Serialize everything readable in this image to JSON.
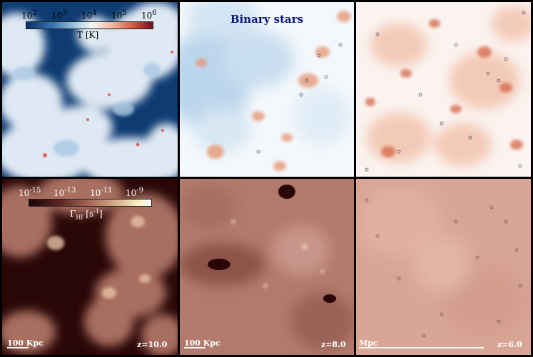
{
  "title": "Binary stars",
  "temperature_colorbar": {
    "ticks": [
      "10",
      "10",
      "10",
      "10",
      "10"
    ],
    "exponents": [
      "2",
      "3",
      "4",
      "5",
      "6"
    ],
    "label_symbol": "T",
    "label_unit": "[K]"
  },
  "photoionization_colorbar": {
    "ticks": [
      "10",
      "10",
      "10",
      "10"
    ],
    "exponents": [
      "-15",
      "-13",
      "-11",
      "-9"
    ],
    "label_symbol": "Γ",
    "label_sub": "HI",
    "label_unit": "[s",
    "label_unit_exp": "-1",
    "label_unit_close": "]"
  },
  "redshifts": [
    "z=10.0",
    "z=8.0",
    "z=6.0"
  ],
  "scalebars": [
    "100 Kpc",
    "100 Kpc",
    "Mpc"
  ],
  "colors": {
    "temperature_low": "#0a2f66",
    "temperature_mid": "#f7f7f7",
    "temperature_high": "#7a0a1c",
    "gamma_low": "#1a0505",
    "gamma_high": "#f5ecbc",
    "title": "#0b1a7a"
  }
}
